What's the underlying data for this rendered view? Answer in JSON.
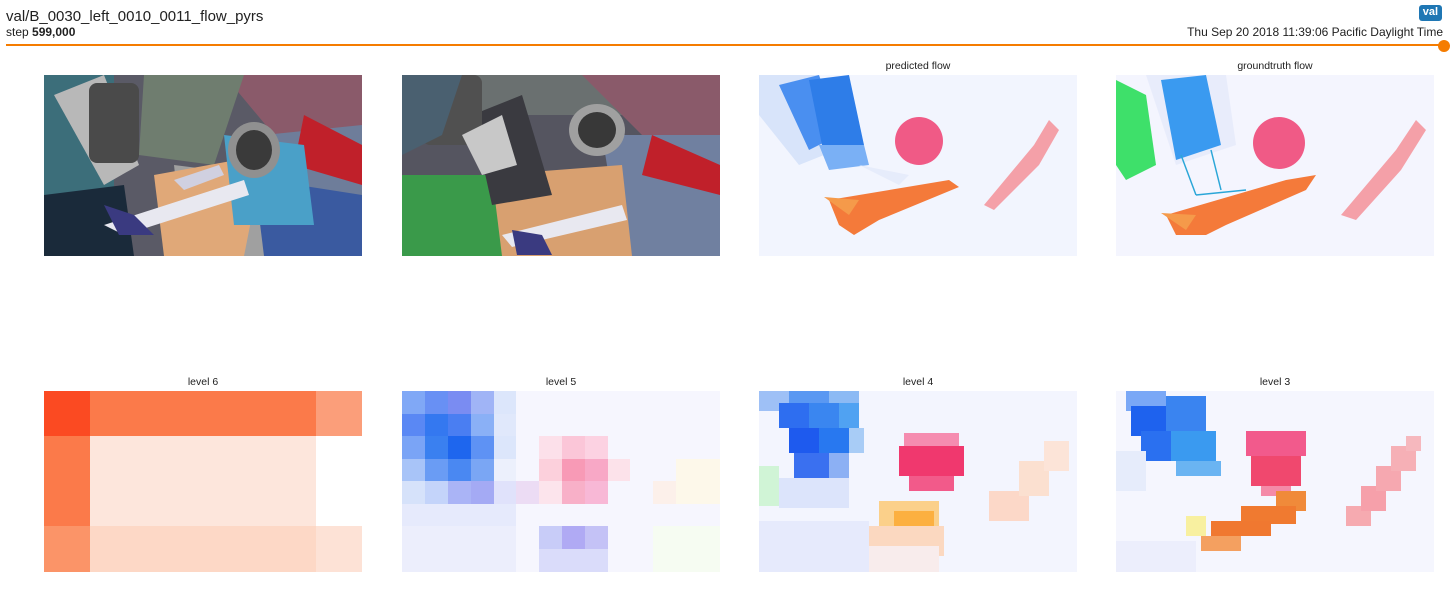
{
  "header": {
    "title": "val/B_0030_left_0010_0011_flow_pyrs",
    "step_label": "step",
    "step_value": "599,000",
    "badge": "val",
    "timestamp": "Thu Sep 20 2018 11:39:06 Pacific Daylight Time"
  },
  "slider": {
    "value": 1.0
  },
  "images": [
    {
      "caption": ""
    },
    {
      "caption": ""
    },
    {
      "caption": "predicted flow"
    },
    {
      "caption": "groundtruth flow"
    },
    {
      "caption": "level 6"
    },
    {
      "caption": "level 5"
    },
    {
      "caption": "level 4"
    },
    {
      "caption": "level 3"
    }
  ],
  "colors": {
    "accent": "#f57c00",
    "badge": "#1f77b4",
    "flow_orange": "#f47a3a",
    "flow_blue": "#2e7de8",
    "flow_pink": "#f05a86"
  }
}
